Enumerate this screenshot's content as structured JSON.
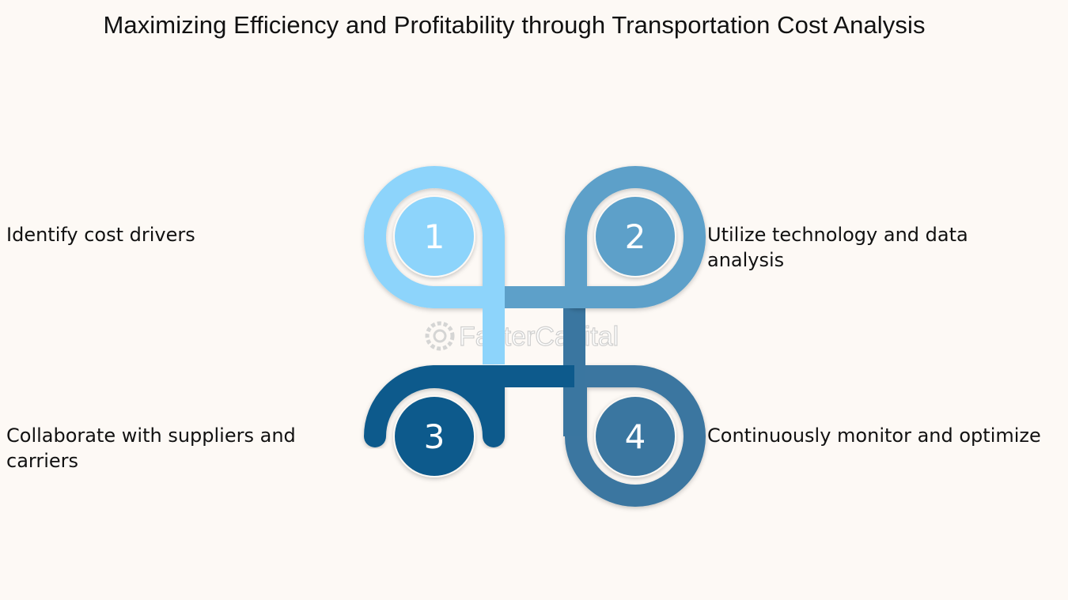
{
  "title": "Maximizing Efficiency and Profitability through Transportation Cost Analysis",
  "steps": [
    {
      "number": "1",
      "label": "Identify cost drivers",
      "color": "#8dd4fb"
    },
    {
      "number": "2",
      "label": "Utilize technology and data analysis",
      "color": "#5da0c9"
    },
    {
      "number": "3",
      "label": "Collaborate with suppliers and carriers",
      "color": "#0d5a8c"
    },
    {
      "number": "4",
      "label": "Continuously monitor and optimize",
      "color": "#3a76a0"
    }
  ],
  "watermark": "FasterCapital",
  "background": "#fdf9f5"
}
